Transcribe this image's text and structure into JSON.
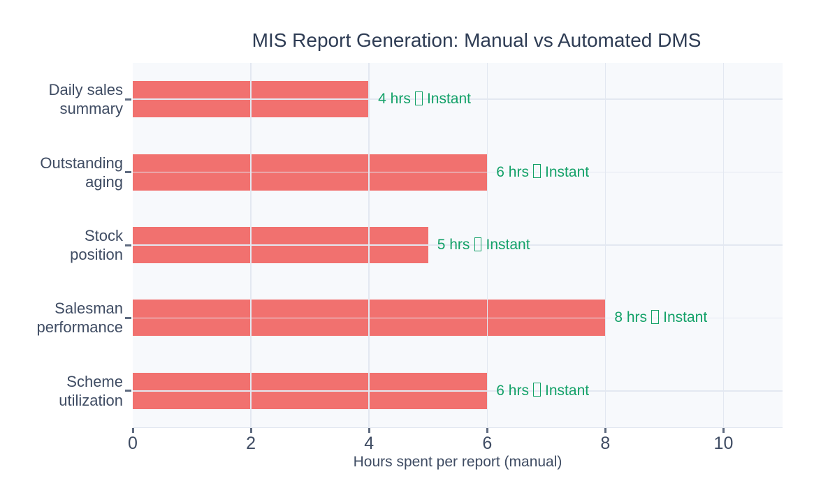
{
  "chart_data": {
    "type": "bar",
    "orientation": "horizontal",
    "title": "MIS Report Generation: Manual vs Automated DMS",
    "xlabel": "Hours spent per report (manual)",
    "ylabel": "",
    "categories": [
      "Daily sales summary",
      "Outstanding aging",
      "Stock position",
      "Salesman performance",
      "Scheme utilization"
    ],
    "category_display_lines": [
      "Daily sales\nsummary",
      "Outstanding\naging",
      "Stock\nposition",
      "Salesman\nperformance",
      "Scheme\nutilization"
    ],
    "series": [
      {
        "name": "Hours spent per report (manual)",
        "values": [
          4,
          6,
          5,
          8,
          6
        ]
      }
    ],
    "bar_labels": [
      {
        "manual": "4 hrs",
        "automated": "Instant"
      },
      {
        "manual": "6 hrs",
        "automated": "Instant"
      },
      {
        "manual": "5 hrs",
        "automated": "Instant"
      },
      {
        "manual": "8 hrs",
        "automated": "Instant"
      },
      {
        "manual": "6 hrs",
        "automated": "Instant"
      }
    ],
    "bar_label_separator_icon": "missing-glyph-box",
    "x_ticks": [
      0,
      2,
      4,
      6,
      8,
      10
    ],
    "xlim": [
      0,
      11
    ],
    "grid": true,
    "legend_position": "none",
    "colors": {
      "bar": "#f1716f",
      "annotation": "#13a168",
      "title": "#2e3c54",
      "axis_text": "#3f4c63",
      "grid": "#e3e8f1",
      "plot_bg": "#f7f9fc",
      "paper_bg": "#ffffff",
      "tick_mark": "#5f6b80"
    }
  }
}
